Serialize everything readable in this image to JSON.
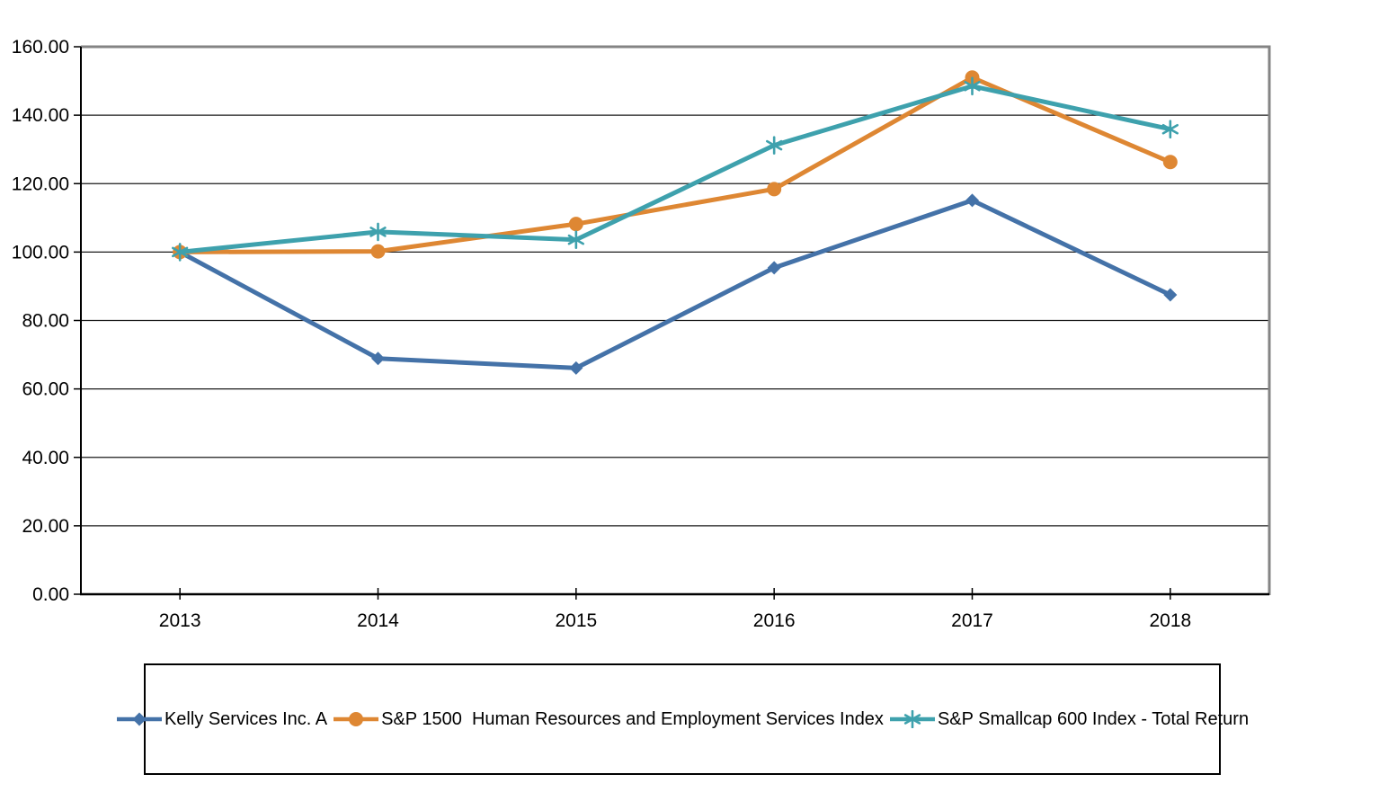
{
  "chart_data": {
    "type": "line",
    "title": "",
    "xlabel": "",
    "ylabel": "",
    "x": [
      "2013",
      "2014",
      "2015",
      "2016",
      "2017",
      "2018"
    ],
    "series": [
      {
        "name": "Kelly Services Inc. A",
        "marker": "diamond",
        "color": "#4472A8",
        "values": [
          100.0,
          68.9,
          66.1,
          95.4,
          115.1,
          87.5
        ]
      },
      {
        "name": "S&P 1500  Human Resources and Employment Services Index",
        "marker": "circle",
        "color": "#DE8733",
        "values": [
          100.0,
          100.2,
          108.2,
          118.4,
          151.0,
          126.3
        ]
      },
      {
        "name": "S&P Smallcap 600 Index - Total Return",
        "marker": "asterisk",
        "color": "#3EA1AD",
        "values": [
          100.0,
          105.9,
          103.6,
          131.2,
          148.5,
          135.9
        ]
      }
    ],
    "ylim": [
      0,
      160
    ],
    "ytick_step": 20,
    "ytick_labels": [
      "0.00",
      "20.00",
      "40.00",
      "60.00",
      "80.00",
      "100.00",
      "120.00",
      "140.00",
      "160.00"
    ],
    "grid": true,
    "legend_position": "bottom",
    "style": {
      "grid_color": "#1a1a1a",
      "axis_color": "#000000",
      "plot_border_color": "#848484",
      "text_color": "#000000"
    }
  }
}
